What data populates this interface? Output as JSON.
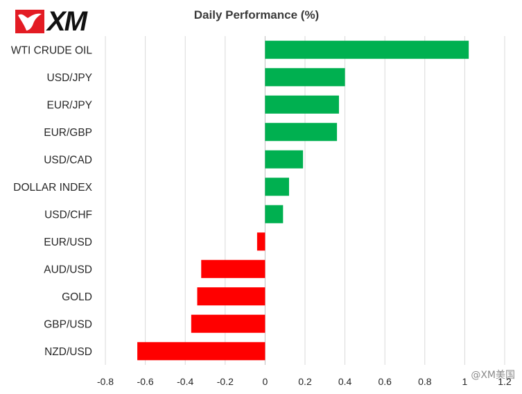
{
  "logo": {
    "text": "XM"
  },
  "watermark": "@XM美国",
  "colors": {
    "positive": "#00b050",
    "negative": "#ff0000",
    "grid": "#d9d9d9",
    "axis": "#bfbfbf"
  },
  "chart_data": {
    "type": "bar",
    "orientation": "horizontal",
    "title": "Daily Performance (%)",
    "categories": [
      "WTI CRUDE OIL",
      "USD/JPY",
      "EUR/JPY",
      "EUR/GBP",
      "USD/CAD",
      "DOLLAR INDEX",
      "USD/CHF",
      "EUR/USD",
      "AUD/USD",
      "GOLD",
      "GBP/USD",
      "NZD/USD"
    ],
    "values": [
      1.02,
      0.4,
      0.37,
      0.36,
      0.19,
      0.12,
      0.09,
      -0.04,
      -0.32,
      -0.34,
      -0.37,
      -0.64
    ],
    "xlim": [
      -0.8,
      1.2
    ],
    "xticks": [
      -0.8,
      -0.6,
      -0.4,
      -0.2,
      0,
      0.2,
      0.4,
      0.6,
      0.8,
      1,
      1.2
    ],
    "xtick_labels": [
      "-0.8",
      "-0.6",
      "-0.4",
      "-0.2",
      "0",
      "0.2",
      "0.4",
      "0.6",
      "0.8",
      "1",
      "1.2"
    ],
    "grid": true,
    "legend": "none"
  }
}
